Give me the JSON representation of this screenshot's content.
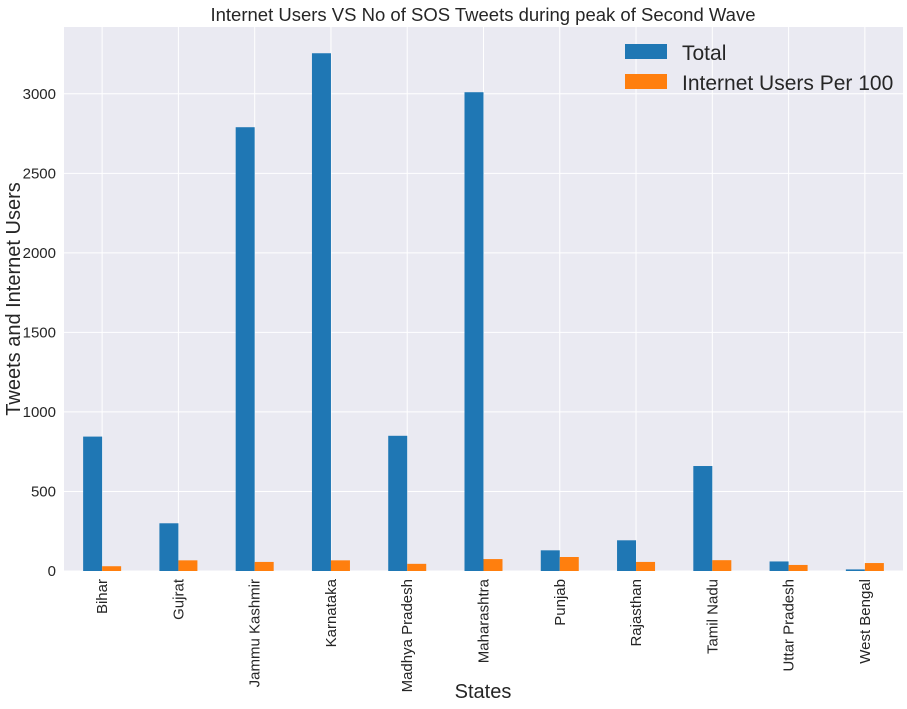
{
  "chart_data": {
    "type": "bar",
    "title": "Internet Users VS  No of SOS Tweets during peak of Second Wave",
    "xlabel": "States",
    "ylabel": "Tweets and Internet Users",
    "categories": [
      "Bihar",
      "Gujrat",
      "Jammu Kashmir",
      "Karnataka",
      "Madhya Pradesh",
      "Maharashtra",
      "Punjab",
      "Rajasthan",
      "Tamil Nadu",
      "Uttar Pradesh",
      "West Bengal"
    ],
    "series": [
      {
        "name": "Total",
        "color": "#1f77b4",
        "values": [
          845,
          300,
          2790,
          3255,
          850,
          3010,
          130,
          193,
          660,
          60,
          10
        ]
      },
      {
        "name": "Internet Users Per 100",
        "color": "#ff7f0e",
        "values": [
          30,
          67,
          57,
          67,
          45,
          75,
          88,
          57,
          68,
          38,
          50
        ]
      }
    ],
    "ylim": [
      0,
      3420
    ],
    "yticks": [
      0,
      500,
      1000,
      1500,
      2000,
      2500,
      3000
    ],
    "grid": true,
    "legend_position": "top-right",
    "background": "#eaeaf2"
  }
}
